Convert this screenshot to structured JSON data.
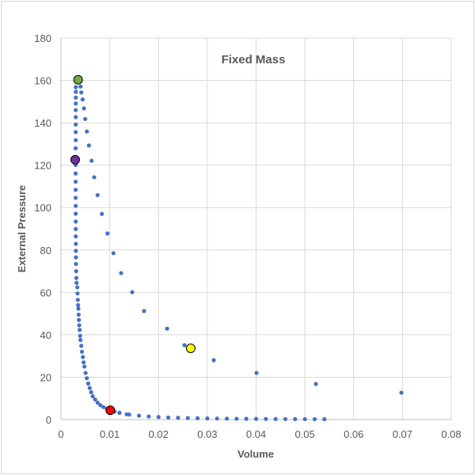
{
  "chart_data": {
    "type": "scatter",
    "title": "Fixed Mass",
    "xlabel": "Volume",
    "ylabel": "External Pressure",
    "xlim": [
      0,
      0.08
    ],
    "ylim": [
      0,
      180
    ],
    "xticks": [
      "0",
      "0.01",
      "0.02",
      "0.03",
      "0.04",
      "0.05",
      "0.06",
      "0.07",
      "0.08"
    ],
    "yticks": [
      "0",
      "20",
      "40",
      "60",
      "80",
      "100",
      "120",
      "140",
      "160",
      "180"
    ],
    "grid": true,
    "legend": "none",
    "colors": {
      "series": "#4472C4",
      "axis_text": "#595959",
      "grid": "#d9d9d9"
    },
    "series": [
      {
        "name": "steep-branch",
        "color": "#4472C4",
        "points": [
          [
            0.00305,
            156.8
          ],
          [
            0.00305,
            154.6
          ],
          [
            0.00304,
            151.9
          ],
          [
            0.00304,
            149.1
          ],
          [
            0.00303,
            146.0
          ],
          [
            0.00303,
            142.7
          ],
          [
            0.00302,
            139.2
          ],
          [
            0.00302,
            135.6
          ],
          [
            0.00302,
            131.8
          ],
          [
            0.00301,
            128.0
          ],
          [
            0.00301,
            120.1
          ],
          [
            0.00301,
            116.1
          ],
          [
            0.00301,
            112.2
          ],
          [
            0.00301,
            108.4
          ],
          [
            0.00301,
            104.6
          ],
          [
            0.00302,
            100.8
          ],
          [
            0.00302,
            97.1
          ],
          [
            0.00303,
            93.4
          ],
          [
            0.00303,
            89.9
          ],
          [
            0.00304,
            86.4
          ],
          [
            0.00305,
            82.9
          ],
          [
            0.00306,
            79.6
          ],
          [
            0.00307,
            76.5
          ],
          [
            0.00308,
            73.4
          ],
          [
            0.00312,
            70.0
          ],
          [
            0.00316,
            66.8
          ],
          [
            0.0032,
            64.5
          ],
          [
            0.00336,
            62.4
          ],
          [
            0.0034,
            59.5
          ],
          [
            0.00346,
            56.5
          ],
          [
            0.00351,
            54.0
          ],
          [
            0.00357,
            52.3
          ],
          [
            0.00362,
            49.5
          ],
          [
            0.00368,
            47.0
          ],
          [
            0.00374,
            44.5
          ],
          [
            0.00384,
            42.3
          ],
          [
            0.00392,
            39.5
          ],
          [
            0.004,
            37.5
          ],
          [
            0.00417,
            34.8
          ],
          [
            0.0043,
            32.0
          ],
          [
            0.0045,
            29.5
          ],
          [
            0.00465,
            27.0
          ],
          [
            0.00482,
            25.0
          ],
          [
            0.00505,
            22.0
          ],
          [
            0.0053,
            19.5
          ],
          [
            0.0056,
            17.0
          ],
          [
            0.00589,
            14.9
          ],
          [
            0.0062,
            12.9
          ],
          [
            0.0065,
            11.0
          ],
          [
            0.007,
            9.5
          ],
          [
            0.0075,
            8.0
          ],
          [
            0.00807,
            6.8
          ],
          [
            0.0087,
            5.9
          ],
          [
            0.0094,
            5.1
          ],
          [
            0.011,
            3.8
          ],
          [
            0.012,
            3.17
          ],
          [
            0.01347,
            2.5
          ],
          [
            0.014,
            2.36
          ],
          [
            0.016,
            1.84
          ],
          [
            0.018,
            1.47
          ],
          [
            0.02,
            1.2
          ],
          [
            0.022,
            1.0
          ],
          [
            0.024,
            0.85
          ],
          [
            0.026,
            0.73
          ],
          [
            0.028,
            0.63
          ],
          [
            0.03,
            0.56
          ],
          [
            0.032,
            0.49
          ],
          [
            0.034,
            0.44
          ],
          [
            0.036,
            0.4
          ],
          [
            0.038,
            0.36
          ],
          [
            0.04,
            0.32
          ],
          [
            0.042,
            0.29
          ],
          [
            0.044,
            0.27
          ],
          [
            0.046,
            0.25
          ],
          [
            0.048,
            0.23
          ],
          [
            0.05,
            0.21
          ],
          [
            0.052,
            0.2
          ],
          [
            0.054,
            0.18
          ]
        ]
      },
      {
        "name": "sparse-branch",
        "color": "#4472C4",
        "points": [
          [
            0.00401,
            157.1
          ],
          [
            0.00417,
            154.3
          ],
          [
            0.00443,
            151.0
          ],
          [
            0.00471,
            146.8
          ],
          [
            0.00498,
            141.8
          ],
          [
            0.00531,
            135.9
          ],
          [
            0.00573,
            129.3
          ],
          [
            0.00628,
            122.1
          ],
          [
            0.00682,
            114.3
          ],
          [
            0.00751,
            105.9
          ],
          [
            0.00839,
            97.0
          ],
          [
            0.00953,
            87.8
          ],
          [
            0.01076,
            78.5
          ],
          [
            0.01233,
            69.1
          ],
          [
            0.0146,
            60.1
          ],
          [
            0.01704,
            51.2
          ],
          [
            0.02175,
            42.9
          ],
          [
            0.02532,
            35.1
          ],
          [
            0.03132,
            28.0
          ],
          [
            0.04008,
            22.0
          ],
          [
            0.05225,
            16.8
          ],
          [
            0.06978,
            12.7
          ]
        ]
      }
    ],
    "highlights": [
      {
        "name": "green-marker",
        "color": "#70AD47",
        "x": 0.00352,
        "y": 160.3
      },
      {
        "name": "purple-marker",
        "color": "#7030A0",
        "x": 0.00292,
        "y": 122.6
      },
      {
        "name": "red-marker",
        "color": "#FF0000",
        "x": 0.01011,
        "y": 4.4
      },
      {
        "name": "yellow-marker",
        "color": "#FFFF00",
        "x": 0.0266,
        "y": 33.6
      }
    ]
  }
}
